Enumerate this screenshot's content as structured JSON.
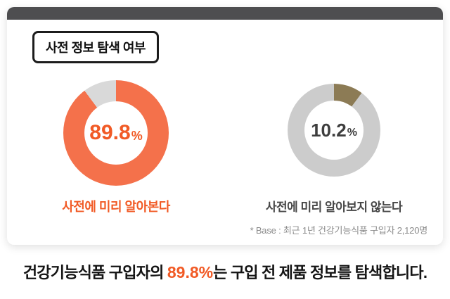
{
  "card": {
    "title": "사전 정보 탐색 여부"
  },
  "charts": {
    "left": {
      "value": "89.8",
      "percent_sign": "%",
      "caption": "사전에 미리 알아본다"
    },
    "right": {
      "value": "10.2",
      "percent_sign": "%",
      "caption": "사전에 미리 알아보지 않는다"
    }
  },
  "base_note": "* Base : 최근 1년 건강기능식품 구입자 2,120명",
  "headline": {
    "prefix": "건강기능식품 구입자의 ",
    "highlight": "89.8%",
    "suffix": "는 구입 전 제품 정보를 탐색합니다."
  },
  "colors": {
    "accent_orange": "#f15a25",
    "donut_orange": "#f4714b",
    "donut_tan": "#8c7b55",
    "donut_gray_left": "#d9d9d9",
    "donut_gray_right": "#cccccc",
    "topbar_gray": "#4e4e50"
  },
  "chart_data": {
    "type": "pie",
    "title": "사전 정보 탐색 여부",
    "categories": [
      "사전에 미리 알아본다",
      "사전에 미리 알아보지 않는다"
    ],
    "values": [
      89.8,
      10.2
    ],
    "unit": "%",
    "base_note": "* Base : 최근 1년 건강기능식품 구입자 2,120명",
    "legend_position": "below-each-donut",
    "donuts": [
      {
        "center_label": "89.8%",
        "highlight_value": 89.8,
        "highlight_color": "#f4714b",
        "rest_color": "#d9d9d9"
      },
      {
        "center_label": "10.2%",
        "highlight_value": 10.2,
        "highlight_color": "#8c7b55",
        "rest_color": "#cccccc"
      }
    ]
  }
}
